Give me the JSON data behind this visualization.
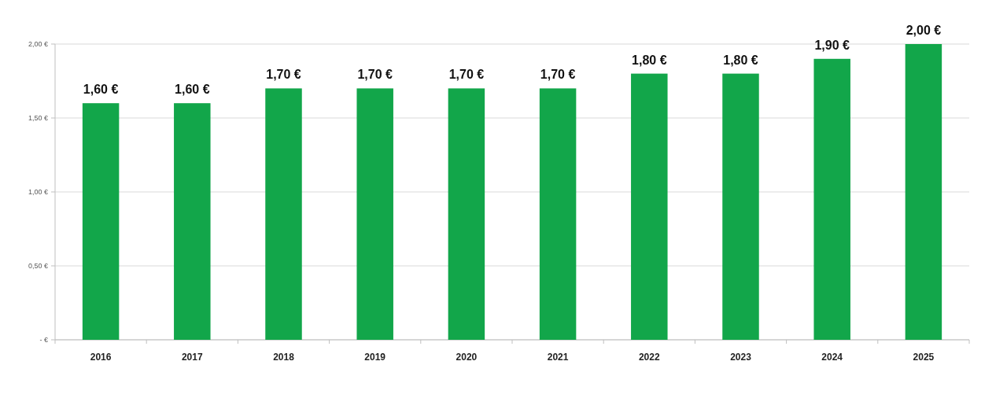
{
  "chart_data": {
    "type": "bar",
    "categories": [
      "2016",
      "2017",
      "2018",
      "2019",
      "2020",
      "2021",
      "2022",
      "2023",
      "2024",
      "2025"
    ],
    "values": [
      1.6,
      1.6,
      1.7,
      1.7,
      1.7,
      1.7,
      1.8,
      1.8,
      1.9,
      2.0
    ],
    "value_labels": [
      "1,60 €",
      "1,60 €",
      "1,70 €",
      "1,70 €",
      "1,70 €",
      "1,70 €",
      "1,80 €",
      "1,80 €",
      "1,90 €",
      "2,00 €"
    ],
    "color": "#12a64a",
    "ylim": [
      0,
      2
    ],
    "yticks": [
      {
        "value": 0,
        "label": "- €"
      },
      {
        "value": 0.5,
        "label": "0,50 €"
      },
      {
        "value": 1,
        "label": "1,00 €"
      },
      {
        "value": 1.5,
        "label": "1,50 €"
      },
      {
        "value": 2,
        "label": "2,00 €"
      }
    ],
    "grid": "y"
  }
}
